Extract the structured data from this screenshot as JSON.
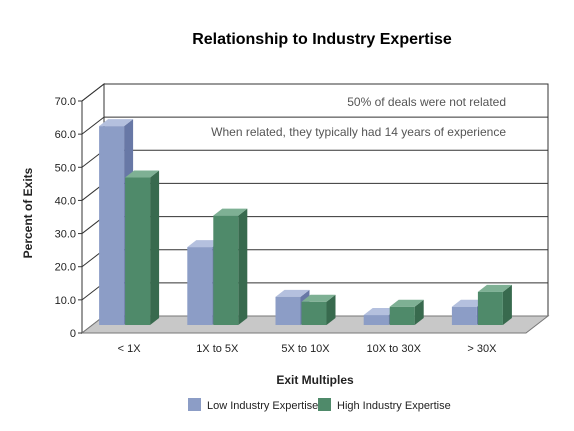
{
  "chart_data": {
    "type": "bar",
    "title": "Relationship to Industry Expertise",
    "xlabel": "Exit Multiples",
    "ylabel": "Percent of Exits",
    "categories": [
      "< 1X",
      "1X to 5X",
      "5X to 10X",
      "10X to 30X",
      "> 30X"
    ],
    "series": [
      {
        "name": "Low Industry Expertise",
        "values": [
          60.0,
          23.5,
          8.5,
          3.0,
          5.5
        ]
      },
      {
        "name": "High Industry Expertise",
        "values": [
          44.5,
          33.0,
          7.0,
          5.5,
          10.0
        ]
      }
    ],
    "yticks": [
      "70.0",
      "60.0",
      "50.0",
      "40.0",
      "30.0",
      "20.0",
      "10.0",
      "0"
    ],
    "ylim": [
      0,
      70
    ],
    "grid": true,
    "legend_position": "bottom",
    "annotations": [
      "50% of deals were not related",
      "When related, they typically had 14 years of experience"
    ],
    "colors": {
      "low_front": "#8c9dc6",
      "low_side": "#6878a6",
      "low_top": "#b4c0de",
      "high_front": "#4f8a6a",
      "high_side": "#386a4e",
      "high_top": "#7eb094",
      "floor": "#c8c8c8",
      "grid": "#333333"
    }
  }
}
